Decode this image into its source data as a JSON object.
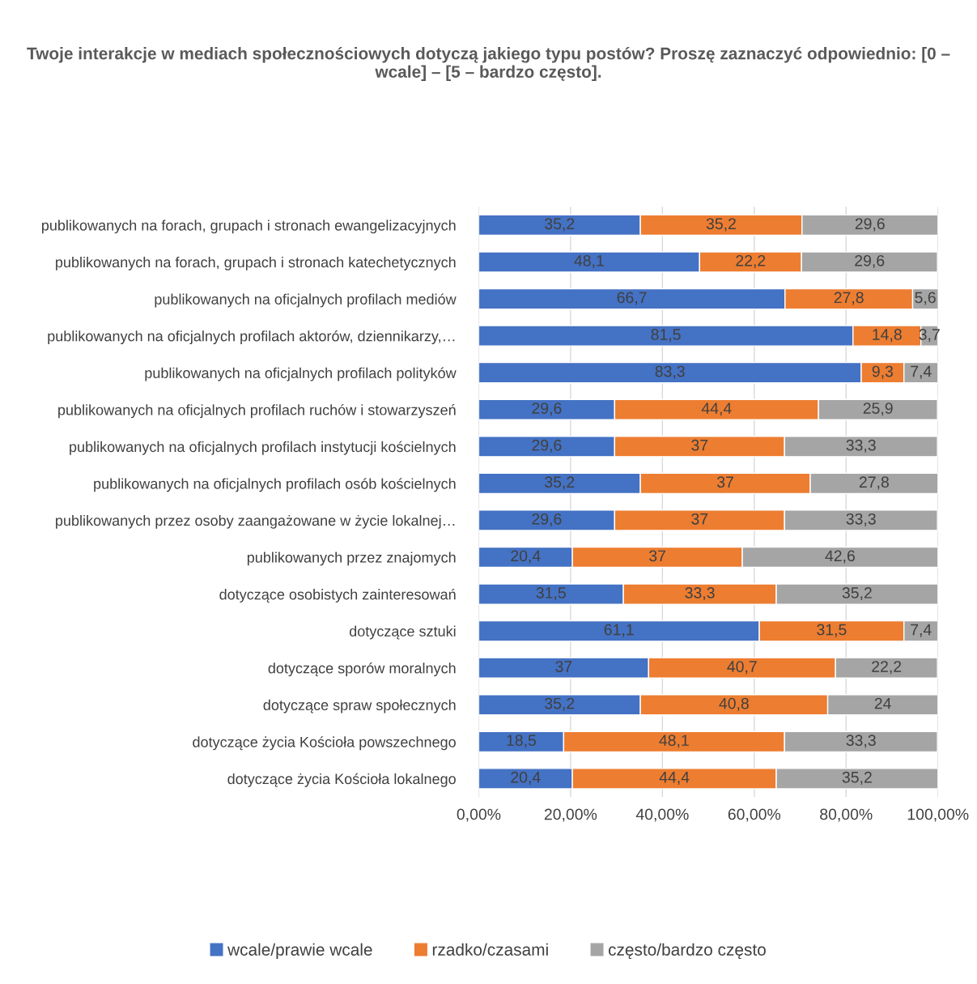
{
  "chart_data": {
    "type": "bar",
    "orientation": "horizontal",
    "stacked": true,
    "title": "Twoje interakcje w mediach społecznościowych dotyczą jakiego typu postów? Proszę zaznaczyć odpowiednio: [0 – wcale] – [5 – bardzo często].",
    "categories": [
      "publikowanych na forach, grupach i stronach ewangelizacyjnych",
      "publikowanych na forach, grupach i stronach katechetycznych",
      "publikowanych na oficjalnych profilach mediów",
      "publikowanych na oficjalnych profilach aktorów, dziennikarzy,…",
      "publikowanych na oficjalnych profilach polityków",
      "publikowanych na oficjalnych profilach ruchów i stowarzyszeń",
      "publikowanych na oficjalnych profilach instytucji kościelnych",
      "publikowanych na oficjalnych profilach osób kościelnych",
      "publikowanych przez osoby zaangażowane w życie lokalnej…",
      "publikowanych przez znajomych",
      "dotyczące osobistych zainteresowań",
      "dotyczące sztuki",
      "dotyczące sporów moralnych",
      "dotyczące spraw społecznych",
      "dotyczące życia Kościoła powszechnego",
      "dotyczące życia Kościoła lokalnego"
    ],
    "series": [
      {
        "name": "wcale/prawie wcale",
        "color": "#4472c4",
        "values": [
          35.2,
          48.1,
          66.7,
          81.5,
          83.3,
          29.6,
          29.6,
          35.2,
          29.6,
          20.4,
          31.5,
          61.1,
          37,
          35.2,
          18.5,
          20.4
        ],
        "value_labels": [
          "35,2",
          "48,1",
          "66,7",
          "81,5",
          "83,3",
          "29,6",
          "29,6",
          "35,2",
          "29,6",
          "20,4",
          "31,5",
          "61,1",
          "37",
          "35,2",
          "18,5",
          "20,4"
        ]
      },
      {
        "name": "rzadko/czasami",
        "color": "#ed7d31",
        "values": [
          35.2,
          22.2,
          27.8,
          14.8,
          9.3,
          44.4,
          37,
          37,
          37,
          37,
          33.3,
          31.5,
          40.7,
          40.8,
          48.1,
          44.4
        ],
        "value_labels": [
          "35,2",
          "22,2",
          "27,8",
          "14,8",
          "9,3",
          "44,4",
          "37",
          "37",
          "37",
          "37",
          "33,3",
          "31,5",
          "40,7",
          "40,8",
          "48,1",
          "44,4"
        ]
      },
      {
        "name": "często/bardzo często",
        "color": "#a5a5a5",
        "values": [
          29.6,
          29.6,
          5.6,
          3.7,
          7.4,
          25.9,
          33.3,
          27.8,
          33.3,
          42.6,
          35.2,
          7.4,
          22.2,
          24,
          33.3,
          35.2
        ],
        "value_labels": [
          "29,6",
          "29,6",
          "5,6",
          "3,7",
          "7,4",
          "25,9",
          "33,3",
          "27,8",
          "33,3",
          "42,6",
          "35,2",
          "7,4",
          "22,2",
          "24",
          "33,3",
          "35,2"
        ]
      }
    ],
    "xlim": [
      0,
      100
    ],
    "xticks": [
      {
        "value": 0,
        "label": "0,00%"
      },
      {
        "value": 20,
        "label": "20,00%"
      },
      {
        "value": 40,
        "label": "40,00%"
      },
      {
        "value": 60,
        "label": "60,00%"
      },
      {
        "value": 80,
        "label": "80,00%"
      },
      {
        "value": 100,
        "label": "100,00%"
      }
    ],
    "grid": "x",
    "legend": "bottom"
  }
}
